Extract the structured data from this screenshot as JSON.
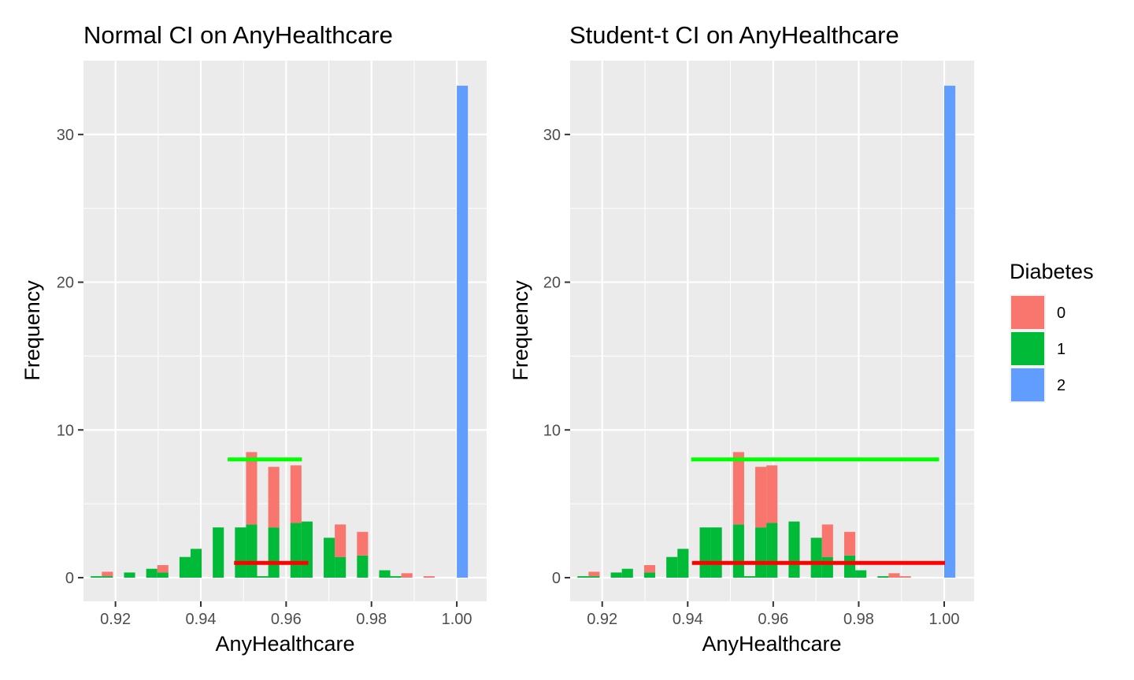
{
  "chart_data": [
    {
      "type": "bar",
      "title": "Normal CI on AnyHealthcare",
      "xlabel": "AnyHealthcare",
      "ylabel": "Frequency",
      "xlim": [
        0.9125,
        1.007
      ],
      "ylim": [
        -1.6,
        35.0
      ],
      "x_ticks": [
        0.92,
        0.94,
        0.96,
        0.98,
        1.0
      ],
      "x_tick_labels": [
        "0.92",
        "0.94",
        "0.96",
        "0.98",
        "1.00"
      ],
      "y_ticks": [
        0,
        10,
        20,
        30
      ],
      "y_tick_labels": [
        "0",
        "10",
        "20",
        "30"
      ],
      "y_minor_ticks": [
        5,
        15,
        25
      ],
      "x_minor_ticks": [
        0.93,
        0.95,
        0.97,
        0.99
      ],
      "grid": true,
      "bin_width": 0.0026,
      "series": [
        {
          "name": "0",
          "color": "#F8766D",
          "bins": [
            {
              "x": 0.9181,
              "y": 0.3
            },
            {
              "x": 0.9311,
              "y": 0.5
            },
            {
              "x": 0.9519,
              "y": 4.9
            },
            {
              "x": 0.9571,
              "y": 4.1
            },
            {
              "x": 0.9623,
              "y": 3.9
            },
            {
              "x": 0.9727,
              "y": 2.2
            },
            {
              "x": 0.9779,
              "y": 1.6
            },
            {
              "x": 0.9883,
              "y": 0.3
            },
            {
              "x": 0.9935,
              "y": 0.1
            }
          ]
        },
        {
          "name": "1",
          "color": "#00BA38",
          "bins": [
            {
              "x": 0.9155,
              "y": 0.1
            },
            {
              "x": 0.9181,
              "y": 0.1
            },
            {
              "x": 0.9233,
              "y": 0.35
            },
            {
              "x": 0.9285,
              "y": 0.6
            },
            {
              "x": 0.9311,
              "y": 0.35
            },
            {
              "x": 0.9363,
              "y": 1.4
            },
            {
              "x": 0.9389,
              "y": 1.95
            },
            {
              "x": 0.9441,
              "y": 3.4
            },
            {
              "x": 0.9493,
              "y": 3.4
            },
            {
              "x": 0.9519,
              "y": 3.6
            },
            {
              "x": 0.9545,
              "y": 0.1
            },
            {
              "x": 0.9571,
              "y": 3.4
            },
            {
              "x": 0.9623,
              "y": 3.7
            },
            {
              "x": 0.9649,
              "y": 3.8
            },
            {
              "x": 0.9701,
              "y": 2.7
            },
            {
              "x": 0.9727,
              "y": 1.4
            },
            {
              "x": 0.9779,
              "y": 1.5
            },
            {
              "x": 0.9831,
              "y": 0.5
            },
            {
              "x": 0.9857,
              "y": 0.1
            }
          ]
        },
        {
          "name": "2",
          "color": "#619CFF",
          "bins": [
            {
              "x": 1.0013,
              "y": 33.3
            }
          ]
        }
      ],
      "ci_segments": [
        {
          "color": "#00FF00",
          "x0": 0.9463,
          "x1": 0.9637,
          "y": 8.0
        },
        {
          "color": "#FF0000",
          "x0": 0.9478,
          "x1": 0.9652,
          "y": 1.0
        }
      ]
    },
    {
      "type": "bar",
      "title": "Student-t CI on AnyHealthcare",
      "xlabel": "AnyHealthcare",
      "ylabel": "Frequency",
      "xlim": [
        0.9125,
        1.007
      ],
      "ylim": [
        -1.6,
        35.0
      ],
      "x_ticks": [
        0.92,
        0.94,
        0.96,
        0.98,
        1.0
      ],
      "x_tick_labels": [
        "0.92",
        "0.94",
        "0.96",
        "0.98",
        "1.00"
      ],
      "y_ticks": [
        0,
        10,
        20,
        30
      ],
      "y_tick_labels": [
        "0",
        "10",
        "20",
        "30"
      ],
      "y_minor_ticks": [
        5,
        15,
        25
      ],
      "x_minor_ticks": [
        0.93,
        0.95,
        0.97,
        0.99
      ],
      "grid": true,
      "bin_width": 0.0026,
      "series": [
        {
          "name": "0",
          "color": "#F8766D",
          "bins": [
            {
              "x": 0.9181,
              "y": 0.3
            },
            {
              "x": 0.9311,
              "y": 0.5
            },
            {
              "x": 0.9519,
              "y": 4.9
            },
            {
              "x": 0.9571,
              "y": 4.1
            },
            {
              "x": 0.9597,
              "y": 3.9
            },
            {
              "x": 0.9727,
              "y": 2.2
            },
            {
              "x": 0.9779,
              "y": 1.6
            },
            {
              "x": 0.9883,
              "y": 0.3
            },
            {
              "x": 0.9909,
              "y": 0.1
            }
          ]
        },
        {
          "name": "1",
          "color": "#00BA38",
          "bins": [
            {
              "x": 0.9155,
              "y": 0.1
            },
            {
              "x": 0.9181,
              "y": 0.1
            },
            {
              "x": 0.9233,
              "y": 0.35
            },
            {
              "x": 0.9259,
              "y": 0.6
            },
            {
              "x": 0.9311,
              "y": 0.35
            },
            {
              "x": 0.9363,
              "y": 1.4
            },
            {
              "x": 0.9389,
              "y": 1.95
            },
            {
              "x": 0.9441,
              "y": 3.4
            },
            {
              "x": 0.9467,
              "y": 3.4
            },
            {
              "x": 0.9519,
              "y": 3.6
            },
            {
              "x": 0.9545,
              "y": 0.1
            },
            {
              "x": 0.9571,
              "y": 3.4
            },
            {
              "x": 0.9597,
              "y": 3.7
            },
            {
              "x": 0.9649,
              "y": 3.8
            },
            {
              "x": 0.9701,
              "y": 2.7
            },
            {
              "x": 0.9727,
              "y": 1.4
            },
            {
              "x": 0.9779,
              "y": 1.5
            },
            {
              "x": 0.9805,
              "y": 0.5
            },
            {
              "x": 0.9857,
              "y": 0.1
            }
          ]
        },
        {
          "name": "2",
          "color": "#619CFF",
          "bins": [
            {
              "x": 1.0013,
              "y": 33.3
            }
          ]
        }
      ],
      "ci_segments": [
        {
          "color": "#00FF00",
          "x0": 0.9408,
          "x1": 0.9988,
          "y": 8.0
        },
        {
          "color": "#FF0000",
          "x0": 0.941,
          "x1": 1.0002,
          "y": 1.0
        }
      ]
    }
  ],
  "legend": {
    "title": "Diabetes",
    "placement": "right",
    "items": [
      {
        "label": "0",
        "color": "#F8766D"
      },
      {
        "label": "1",
        "color": "#00BA38"
      },
      {
        "label": "2",
        "color": "#619CFF"
      }
    ]
  }
}
